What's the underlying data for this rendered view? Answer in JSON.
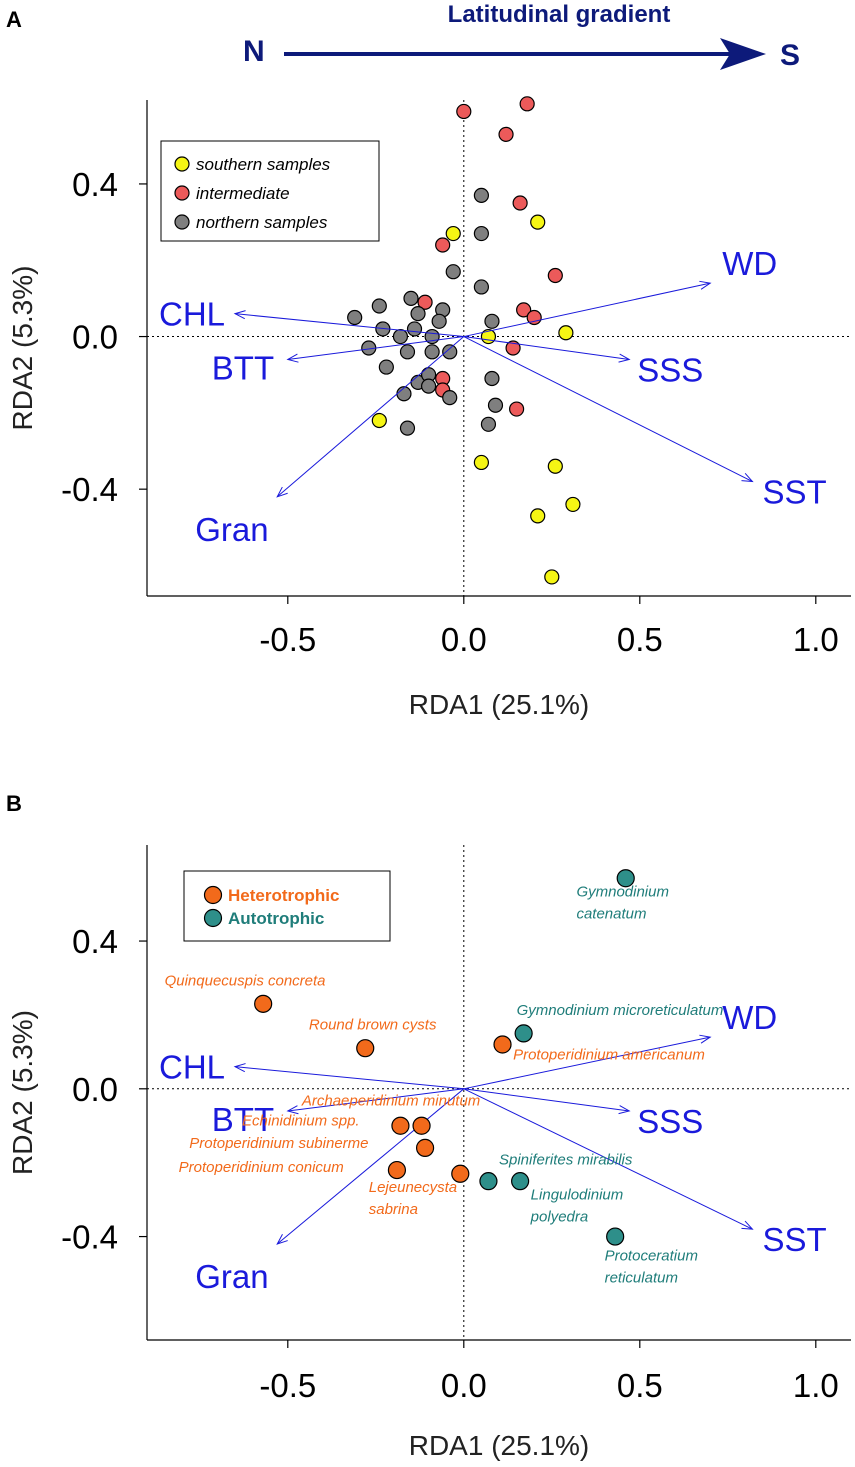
{
  "colors": {
    "southern": "#f5f514",
    "intermediate": "#ec5a5a",
    "northern": "#7f7f7f",
    "heterotrophic": "#f26a1b",
    "autotrophic": "#2e8f8a",
    "heterotrophic_text": "#f26a1b",
    "autotrophic_text": "#1f7d7a",
    "vector": "#1a1adb",
    "gradient": "#0d1a7a"
  },
  "gradient": {
    "title": "Latitudinal gradient",
    "start": "N",
    "end": "S"
  },
  "chart_data": [
    {
      "type": "scatter",
      "panel": "A",
      "xlabel": "RDA1 (25.1%)",
      "ylabel": "RDA2 (5.3%)",
      "xlim": [
        -0.9,
        1.1
      ],
      "ylim": [
        -0.68,
        0.62
      ],
      "xticks": [
        -0.5,
        0.0,
        0.5,
        1.0
      ],
      "xtick_labels": [
        "-0.5",
        "0.0",
        "0.5",
        "1.0"
      ],
      "yticks": [
        -0.4,
        0.0,
        0.4
      ],
      "ytick_labels": [
        "-0.4",
        "0.0",
        "0.4"
      ],
      "legend": [
        {
          "label": "southern samples",
          "group": "southern"
        },
        {
          "label": "intermediate",
          "group": "intermediate"
        },
        {
          "label": "northern samples",
          "group": "northern"
        }
      ],
      "vectors": [
        {
          "label": "CHL",
          "x": -0.65,
          "y": 0.06
        },
        {
          "label": "BTT",
          "x": -0.5,
          "y": -0.06
        },
        {
          "label": "Gran",
          "x": -0.53,
          "y": -0.42
        },
        {
          "label": "WD",
          "x": 0.7,
          "y": 0.14
        },
        {
          "label": "SSS",
          "x": 0.47,
          "y": -0.06
        },
        {
          "label": "SST",
          "x": 0.82,
          "y": -0.38
        }
      ],
      "series": [
        {
          "name": "southern samples",
          "group": "southern",
          "points": [
            [
              -0.03,
              0.27
            ],
            [
              0.21,
              0.3
            ],
            [
              0.07,
              0.0
            ],
            [
              0.29,
              0.01
            ],
            [
              -0.24,
              -0.22
            ],
            [
              0.05,
              -0.33
            ],
            [
              0.26,
              -0.34
            ],
            [
              0.21,
              -0.47
            ],
            [
              0.31,
              -0.44
            ],
            [
              0.25,
              -0.63
            ]
          ]
        },
        {
          "name": "intermediate",
          "group": "intermediate",
          "points": [
            [
              0.0,
              0.59
            ],
            [
              0.18,
              0.61
            ],
            [
              0.12,
              0.53
            ],
            [
              0.16,
              0.35
            ],
            [
              -0.06,
              0.24
            ],
            [
              0.26,
              0.16
            ],
            [
              -0.11,
              0.09
            ],
            [
              0.17,
              0.07
            ],
            [
              0.2,
              0.05
            ],
            [
              0.14,
              -0.03
            ],
            [
              -0.06,
              -0.11
            ],
            [
              -0.06,
              -0.14
            ],
            [
              0.15,
              -0.19
            ]
          ]
        },
        {
          "name": "northern samples",
          "group": "northern",
          "points": [
            [
              0.05,
              0.37
            ],
            [
              0.05,
              0.27
            ],
            [
              -0.03,
              0.17
            ],
            [
              0.05,
              0.13
            ],
            [
              -0.15,
              0.1
            ],
            [
              -0.24,
              0.08
            ],
            [
              -0.06,
              0.07
            ],
            [
              -0.31,
              0.05
            ],
            [
              -0.13,
              0.06
            ],
            [
              -0.07,
              0.04
            ],
            [
              0.08,
              0.04
            ],
            [
              -0.23,
              0.02
            ],
            [
              -0.14,
              0.02
            ],
            [
              -0.18,
              0.0
            ],
            [
              -0.09,
              0.0
            ],
            [
              -0.27,
              -0.03
            ],
            [
              -0.16,
              -0.04
            ],
            [
              -0.09,
              -0.04
            ],
            [
              -0.04,
              -0.04
            ],
            [
              -0.22,
              -0.08
            ],
            [
              -0.13,
              -0.12
            ],
            [
              -0.1,
              -0.1
            ],
            [
              0.08,
              -0.11
            ],
            [
              -0.1,
              -0.13
            ],
            [
              -0.17,
              -0.15
            ],
            [
              -0.04,
              -0.16
            ],
            [
              0.09,
              -0.18
            ],
            [
              -0.16,
              -0.24
            ],
            [
              0.07,
              -0.23
            ]
          ]
        }
      ]
    },
    {
      "type": "scatter",
      "panel": "B",
      "xlabel": "RDA1 (25.1%)",
      "ylabel": "RDA2 (5.3%)",
      "xlim": [
        -0.9,
        1.1
      ],
      "ylim": [
        -0.68,
        0.66
      ],
      "xticks": [
        -0.5,
        0.0,
        0.5,
        1.0
      ],
      "xtick_labels": [
        "-0.5",
        "0.0",
        "0.5",
        "1.0"
      ],
      "yticks": [
        -0.4,
        0.0,
        0.4
      ],
      "ytick_labels": [
        "-0.4",
        "0.0",
        "0.4"
      ],
      "legend": [
        {
          "label": "Heterotrophic",
          "group": "heterotrophic"
        },
        {
          "label": "Autotrophic",
          "group": "autotrophic"
        }
      ],
      "vectors": [
        {
          "label": "CHL",
          "x": -0.65,
          "y": 0.06
        },
        {
          "label": "BTT",
          "x": -0.5,
          "y": -0.06
        },
        {
          "label": "Gran",
          "x": -0.53,
          "y": -0.42
        },
        {
          "label": "WD",
          "x": 0.7,
          "y": 0.14
        },
        {
          "label": "SSS",
          "x": 0.47,
          "y": -0.06
        },
        {
          "label": "SST",
          "x": 0.82,
          "y": -0.38
        }
      ],
      "species": [
        {
          "label": "Quinquecuspis concreta",
          "group": "heterotrophic",
          "x": -0.57,
          "y": 0.23,
          "lx": -0.85,
          "ly": 0.28
        },
        {
          "label": "Round brown cysts",
          "group": "heterotrophic",
          "x": -0.28,
          "y": 0.11,
          "lx": -0.44,
          "ly": 0.16
        },
        {
          "label": "Protoperidinium americanum",
          "group": "heterotrophic",
          "x": 0.11,
          "y": 0.12,
          "lx": 0.14,
          "ly": 0.08
        },
        {
          "label": "Archaeperidinium minutum",
          "group": "heterotrophic",
          "x": -0.12,
          "y": -0.1,
          "lx": -0.46,
          "ly": -0.045
        },
        {
          "label": "Echinidinium spp.",
          "group": "heterotrophic",
          "x": -0.18,
          "y": -0.1,
          "lx": -0.63,
          "ly": -0.1
        },
        {
          "label": "Protoperidinium subinerme",
          "group": "heterotrophic",
          "x": -0.11,
          "y": -0.16,
          "lx": -0.78,
          "ly": -0.16
        },
        {
          "label": "Protoperidinium conicum",
          "group": "heterotrophic",
          "x": -0.19,
          "y": -0.22,
          "lx": -0.81,
          "ly": -0.225
        },
        {
          "label": "Lejeunecysta\nsabrina",
          "group": "heterotrophic",
          "x": -0.01,
          "y": -0.23,
          "lx": -0.27,
          "ly": -0.28
        },
        {
          "label": "Gymnodinium\ncatenatum",
          "group": "autotrophic",
          "x": 0.46,
          "y": 0.57,
          "lx": 0.32,
          "ly": 0.52
        },
        {
          "label": "Gymnodinium microreticulatum",
          "group": "autotrophic",
          "x": 0.17,
          "y": 0.15,
          "lx": 0.15,
          "ly": 0.2
        },
        {
          "label": "Spiniferites mirabilis",
          "group": "autotrophic",
          "x": 0.07,
          "y": -0.25,
          "lx": 0.1,
          "ly": -0.205
        },
        {
          "label": "Lingulodinium\npolyedra",
          "group": "autotrophic",
          "x": 0.16,
          "y": -0.25,
          "lx": 0.19,
          "ly": -0.3
        },
        {
          "label": "Protoceratium\nreticulatum",
          "group": "autotrophic",
          "x": 0.43,
          "y": -0.4,
          "lx": 0.4,
          "ly": -0.465
        }
      ]
    }
  ]
}
